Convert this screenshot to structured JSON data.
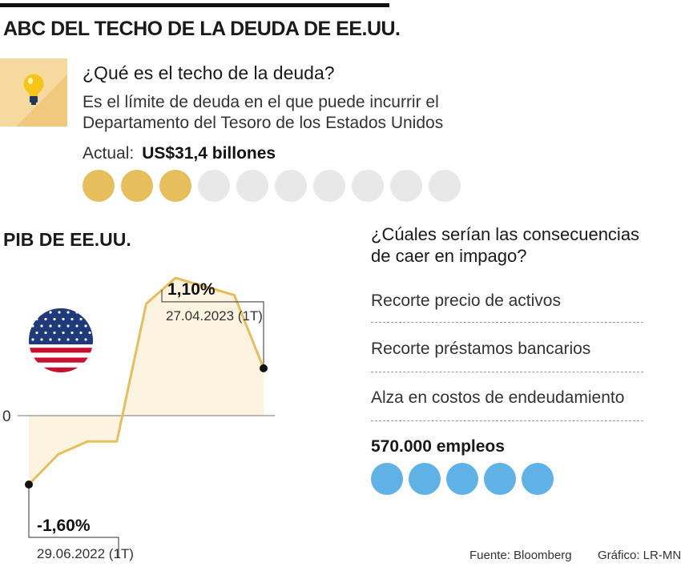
{
  "title": "ABC DEL TECHO DE LA DEUDA DE EE.UU.",
  "debt_ceiling": {
    "question": "¿Qué es el techo de la deuda?",
    "description_line1": "Es el límite de deuda en el que puede incurrir el",
    "description_line2": "Departamento del Tesoro de los Estados Unidos",
    "current_label": "Actual:",
    "current_value": "US$31,4 billones",
    "dots_total": 10,
    "dots_filled": 3,
    "icon": "lightbulb-icon",
    "accent_color": "#e6bf5c"
  },
  "chart_data": {
    "type": "area",
    "title": "PIB DE EE.UU.",
    "zero_label": "0",
    "x": [
      "29.06.2022 (1T)",
      "",
      "",
      "",
      "",
      "",
      "",
      "",
      "27.04.2023 (1T)"
    ],
    "series": [
      {
        "values": [
          -1.6,
          -0.9,
          -0.6,
          -0.6,
          2.6,
          3.2,
          3.0,
          2.8,
          1.1
        ]
      }
    ],
    "annotations": [
      {
        "index": 0,
        "value_label": "-1,60%",
        "date_label": "29.06.2022 (1T)"
      },
      {
        "index": 8,
        "value_label": "1,10%",
        "date_label": "27.04.2023 (1T)"
      }
    ],
    "ylim": [
      -1.6,
      3.2
    ],
    "grid": false,
    "line_color": "#e6bf5c",
    "fill_color": "#fdf3e1",
    "icon": "us-flag-icon"
  },
  "consequences": {
    "question_line1": "¿Cúales serían las consecuencias",
    "question_line2": "de caer en impago?",
    "items": [
      "Recorte precio de activos",
      "Recorte préstamos bancarios",
      "Alza en costos de endeudamiento"
    ],
    "jobs_label": "570.000 empleos",
    "jobs_dots": 5,
    "dot_color": "#5fb2e6"
  },
  "footer": {
    "source": "Fuente: Bloomberg",
    "credit": "Gráfico: LR-MN"
  }
}
